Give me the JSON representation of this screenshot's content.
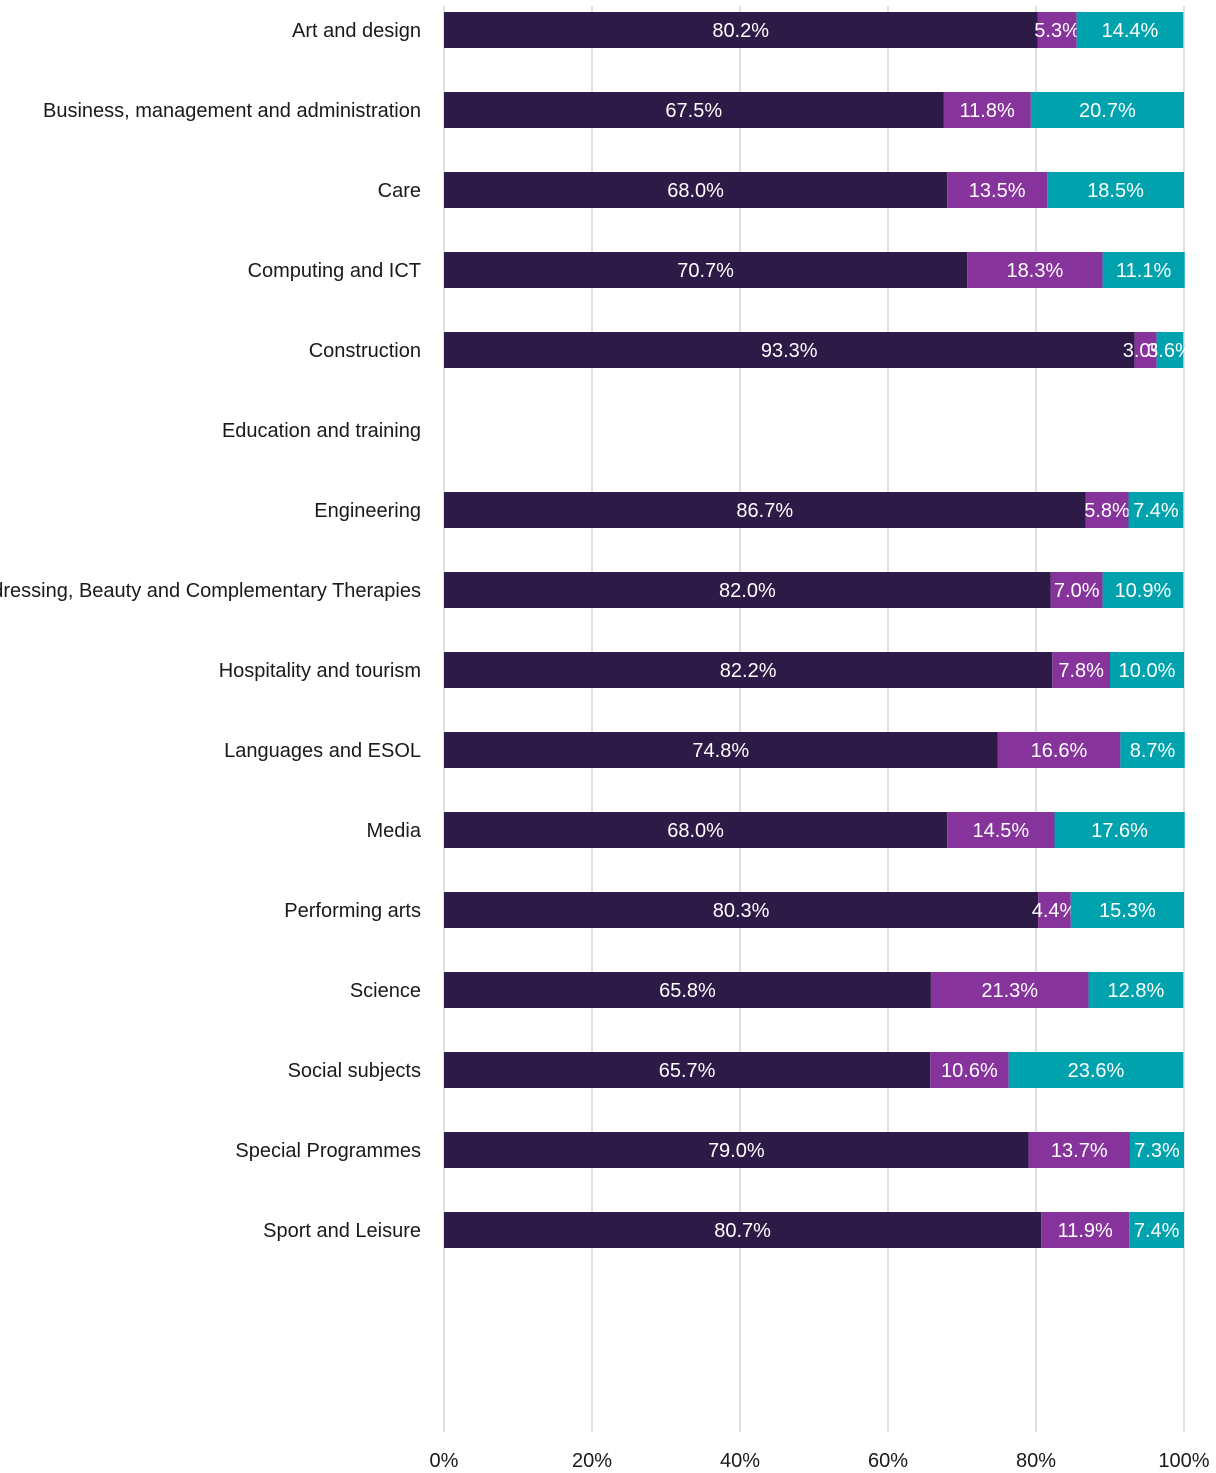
{
  "chart_data": {
    "type": "bar",
    "orientation": "horizontal",
    "stacked": "percent",
    "categories": [
      "Art and design",
      "Business, management and administration",
      "Care",
      "Computing and ICT",
      "Construction",
      "Education and training",
      "Engineering",
      "Hairdressing, Beauty and Complementary Therapies",
      "Hospitality and tourism",
      "Languages and ESOL",
      "Media",
      "Performing arts",
      "Science",
      "Social subjects",
      "Special Programmes",
      "Sport and Leisure"
    ],
    "series": [
      {
        "color": "#2e1a47",
        "values": [
          80.2,
          67.5,
          68.0,
          70.7,
          93.3,
          null,
          86.7,
          82.0,
          82.2,
          74.8,
          68.0,
          80.3,
          65.8,
          65.7,
          79.0,
          80.7
        ],
        "labels": [
          "80.2%",
          "67.5%",
          "68.0%",
          "70.7%",
          "93.3%",
          "",
          "86.7%",
          "82.0%",
          "82.2%",
          "74.8%",
          "68.0%",
          "80.3%",
          "65.8%",
          "65.7%",
          "79.0%",
          "80.7%"
        ]
      },
      {
        "color": "#86349c",
        "values": [
          5.3,
          11.8,
          13.5,
          18.3,
          3.0,
          null,
          5.8,
          7.0,
          7.8,
          16.6,
          14.5,
          4.4,
          21.3,
          10.6,
          13.7,
          11.9
        ],
        "labels": [
          "5.3%",
          "11.8%",
          "13.5%",
          "18.3%",
          "3.0%",
          "",
          "5.8%",
          "7.0%",
          "7.8%",
          "16.6%",
          "14.5%",
          "4.4%",
          "21.3%",
          "10.6%",
          "13.7%",
          "11.9%"
        ]
      },
      {
        "color": "#00a3ad",
        "values": [
          14.4,
          20.7,
          18.5,
          11.1,
          3.6,
          null,
          7.4,
          10.9,
          10.0,
          8.7,
          17.6,
          15.3,
          12.8,
          23.6,
          7.3,
          7.4
        ],
        "labels": [
          "14.4%",
          "20.7%",
          "18.5%",
          "11.1%",
          "3.6%",
          "",
          "7.4%",
          "10.9%",
          "10.0%",
          "8.7%",
          "17.6%",
          "15.3%",
          "12.8%",
          "23.6%",
          "7.3%",
          "7.4%"
        ]
      }
    ],
    "x_ticks": [
      "0%",
      "20%",
      "40%",
      "60%",
      "80%",
      "100%"
    ],
    "xlim": [
      0,
      100
    ],
    "grid": true,
    "title": "",
    "xlabel": "",
    "ylabel": ""
  }
}
